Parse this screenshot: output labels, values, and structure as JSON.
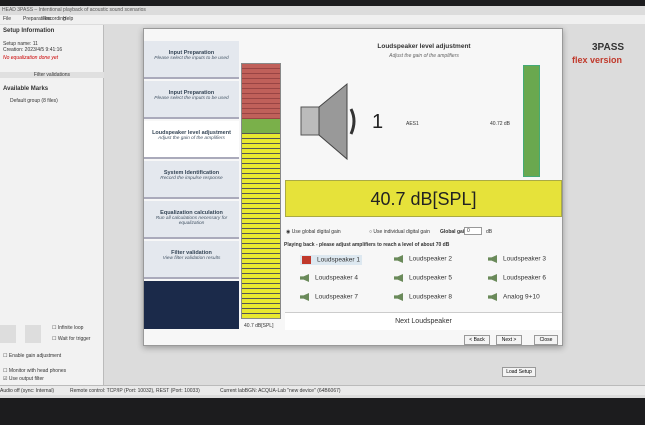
{
  "window": {
    "title": "HEAD 3PASS – Intentional playback of acoustic sound scenarios",
    "menu": [
      "File",
      "Preparations",
      "Recording",
      "Help"
    ]
  },
  "setup": {
    "title": "Setup Information",
    "lines": [
      "Setup name: 11",
      "Creation: 2023/4/5 9:41:16"
    ],
    "warning": "No equalization done yet",
    "filter_button": "Filter validations"
  },
  "marks": {
    "title": "Available Marks",
    "group": "Default group (8 files)"
  },
  "options": [
    "Infinite loop",
    "Wait for trigger"
  ],
  "checks": [
    "Enable gain adjustment",
    "Monitor with head phones",
    "Use output filter"
  ],
  "brand": {
    "name": "3PASS",
    "edition": "flex version"
  },
  "wizard": {
    "title": "Loudspeaker level adjustment",
    "subtitle": "Adjust the gain of the amplifiers",
    "steps": [
      {
        "title": "Input Preparation",
        "desc": "Please select the inputs to be used"
      },
      {
        "title": "Input Preparation",
        "desc": "Please select the inputs to be used"
      },
      {
        "title": "Loudspeaker level adjustment",
        "desc": "Adjust the gain of the amplifiers"
      },
      {
        "title": "System Identification",
        "desc": "Record the impulse response"
      },
      {
        "title": "Equalization calculation",
        "desc": "Run all calculations necessary for equalization"
      },
      {
        "title": "Filter validation",
        "desc": "View filter validation results"
      }
    ],
    "meter_label": "40.7 dB[SPL]",
    "channel": {
      "number": "1",
      "input": "AES1",
      "level": "40.72 dB"
    },
    "level_display": "40.7 dB[SPL]",
    "gain": {
      "global": "Use global digital gain",
      "individual": "Use individual digital gain",
      "label": "Global gain:",
      "value": "0",
      "unit": "dB"
    },
    "instruction": "Playing back - please adjust amplifiers to reach a level of about 70 dB",
    "speakers": [
      "Loudspeaker 1",
      "Loudspeaker 2",
      "Loudspeaker 3",
      "Loudspeaker 4",
      "Loudspeaker 5",
      "Loudspeaker 6",
      "Loudspeaker 7",
      "Loudspeaker 8",
      "Analog 9+10"
    ],
    "next_speaker": "Next Loudspeaker",
    "buttons": [
      "< Back",
      "Next >",
      "Close"
    ]
  },
  "load_setup": "Load Setup",
  "status": [
    "Audio off (sync: Internal)",
    "Remote control: TCP/IP (Port: 10032), REST (Port: 10033)",
    "Current labBGN: ACQUA-Lab \"new device\" (64B6067)"
  ]
}
